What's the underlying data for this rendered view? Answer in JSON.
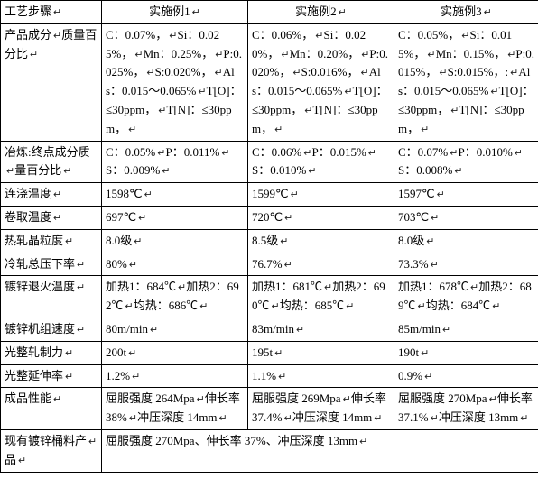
{
  "table": {
    "retMark": "↵",
    "headers": [
      "工艺步骤",
      "实施例1",
      "实施例2",
      "实施例3"
    ],
    "rows": [
      {
        "label": "产品成分\n质量百分比",
        "c1": [
          "C：0.07%，",
          "Si：0.025%，",
          "Mn：0.25%，",
          "P:0.025%，",
          "S:0.020%，",
          "Als：0.015～0.065%",
          "T[O]：≤30ppm，",
          "T[N]：≤30ppm，"
        ],
        "c2": [
          "C：0.06%，",
          "Si：0.020%，",
          "Mn：0.20%，",
          "P:0.020%，",
          "S:0.016%，",
          "Als：0.015～0.065%",
          "T[O]：≤30ppm，",
          "T[N]：≤30ppm，"
        ],
        "c3": [
          "C：0.05%，",
          "Si：0.015%，",
          "Mn：0.15%，",
          "P:0.015%，",
          "S:0.015%，:",
          "Als：0.015～0.065%",
          "T[O]：≤30ppm，",
          "T[N]：≤30ppm，"
        ]
      },
      {
        "label": "冶炼:终点成分质\n量百分比",
        "c1": [
          "C：0.05%",
          "P：0.011%",
          "S：0.009%"
        ],
        "c2": [
          "C：0.06%",
          "P：0.015%",
          "S：0.010%"
        ],
        "c3": [
          "C：0.07%",
          "P：0.010%",
          "S：0.008%"
        ]
      },
      {
        "label": "连浇温度",
        "c1": [
          "1598℃"
        ],
        "c2": [
          "1599℃"
        ],
        "c3": [
          "1597℃"
        ]
      },
      {
        "label": "卷取温度",
        "c1": [
          "697℃"
        ],
        "c2": [
          "720℃"
        ],
        "c3": [
          "703℃"
        ]
      },
      {
        "label": "热轧晶粒度",
        "c1": [
          "8.0级"
        ],
        "c2": [
          "8.5级"
        ],
        "c3": [
          "8.0级"
        ]
      },
      {
        "label": "冷轧总压下率",
        "c1": [
          "80%"
        ],
        "c2": [
          "76.7%"
        ],
        "c3": [
          "73.3%"
        ]
      },
      {
        "label": "镀锌退火温度",
        "c1": [
          "加热1：684℃",
          "加热2：692℃",
          "均热：686℃"
        ],
        "c2": [
          "加热1：681℃",
          "加热2：690℃",
          "均热：685℃"
        ],
        "c3": [
          "加热1：678℃",
          "加热2：689℃",
          "均热：684℃"
        ]
      },
      {
        "label": "镀锌机组速度",
        "c1": [
          "80m/min"
        ],
        "c2": [
          "83m/min"
        ],
        "c3": [
          "85m/min"
        ]
      },
      {
        "label": "光整轧制力",
        "c1": [
          "200t"
        ],
        "c2": [
          "195t"
        ],
        "c3": [
          "190t"
        ]
      },
      {
        "label": "光整延伸率",
        "c1": [
          "1.2%"
        ],
        "c2": [
          "1.1%"
        ],
        "c3": [
          "0.9%"
        ]
      },
      {
        "label": "成品性能",
        "c1": [
          "屈服强度 264Mpa",
          "伸长率 38%",
          "冲压深度 14mm"
        ],
        "c2": [
          "屈服强度 269Mpa",
          "伸长率 37.4%",
          "冲压深度 14mm"
        ],
        "c3": [
          "屈服强度 270Mpa",
          "伸长率 37.1%",
          "冲压深度 13mm"
        ]
      }
    ],
    "footer": {
      "label": "现有镀锌桶料产\n品",
      "value": "屈服强度 270Mpa、伸长率 37%、冲压深度 13mm"
    }
  }
}
